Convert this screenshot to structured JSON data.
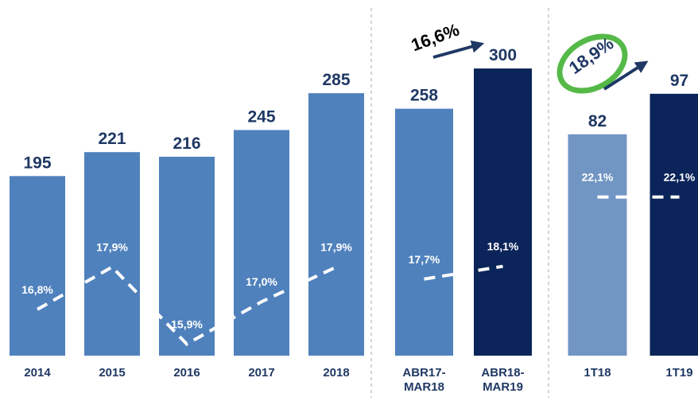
{
  "chart_data": [
    {
      "type": "bar",
      "categories": [
        "2014",
        "2015",
        "2016",
        "2017",
        "2018"
      ],
      "values": [
        195,
        221,
        216,
        245,
        285
      ],
      "colors": [
        "#4f81bd",
        "#4f81bd",
        "#4f81bd",
        "#4f81bd",
        "#4f81bd"
      ],
      "ylim": [
        0,
        343
      ],
      "margin_values": [
        16.8,
        17.9,
        15.9,
        17.0,
        17.9
      ],
      "margin_labels": [
        "16,8%",
        "17,9%",
        "15,9%",
        "17,0%",
        "17,9%"
      ],
      "y2lim": [
        15.6,
        23.8
      ]
    },
    {
      "type": "bar",
      "categories": [
        "ABR17-\nMAR18",
        "ABR18-\nMAR19"
      ],
      "values": [
        258,
        300
      ],
      "colors": [
        "#4f81bd",
        "#0b2459"
      ],
      "ylim": [
        0,
        330
      ],
      "margin_values": [
        17.7,
        18.1
      ],
      "margin_labels": [
        "17,7%",
        "18,1%"
      ],
      "y2lim": [
        15.3,
        25.2
      ],
      "annotation": "16,6%"
    },
    {
      "type": "bar",
      "categories": [
        "1T18",
        "1T19"
      ],
      "values": [
        82,
        97
      ],
      "colors": [
        "#7296c4",
        "#0b2459"
      ],
      "ylim": [
        0,
        117
      ],
      "margin_values": [
        22.1,
        22.1
      ],
      "margin_labels": [
        "22,1%",
        "22,1%"
      ],
      "y2lim": [
        0,
        44
      ],
      "annotation": "18,9%"
    }
  ]
}
